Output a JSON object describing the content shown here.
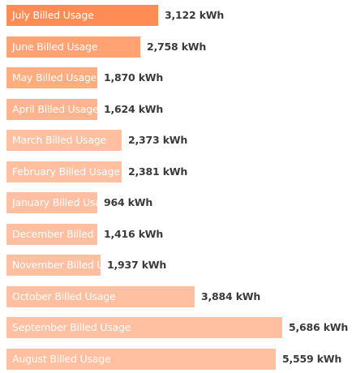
{
  "chart_data": {
    "type": "bar",
    "orientation": "horizontal",
    "unit": "kWh",
    "categories": [
      "July Billed Usage",
      "June Billed Usage",
      "May Billed Usage",
      "April Billed Usage",
      "March Billed Usage",
      "February Billed Usage",
      "January Billed Usage",
      "December Billed Usage",
      "November Billed Usage",
      "October Billed Usage",
      "September Billed Usage",
      "August Billed Usage"
    ],
    "values": [
      3122,
      2758,
      1870,
      1624,
      2373,
      2381,
      964,
      1416,
      1937,
      3884,
      5686,
      5559
    ],
    "value_labels": [
      "3,122 kWh",
      "2,758 kWh",
      "1,870 kWh",
      "1,624 kWh",
      "2,373 kWh",
      "2,381 kWh",
      "964 kWh",
      "1,416 kWh",
      "1,937 kWh",
      "3,884 kWh",
      "5,686 kWh",
      "5,559 kWh"
    ],
    "colors": [
      "#ff8c55",
      "#ffa274",
      "#ffac7f",
      "#ffb48d",
      "#ffbfa0",
      "#ffbfa0",
      "#ffbfa0",
      "#ffbfa0",
      "#ffbfa0",
      "#ffbfa0",
      "#ffbfa0",
      "#ffbfa0"
    ],
    "grid": false,
    "legend": "none"
  }
}
